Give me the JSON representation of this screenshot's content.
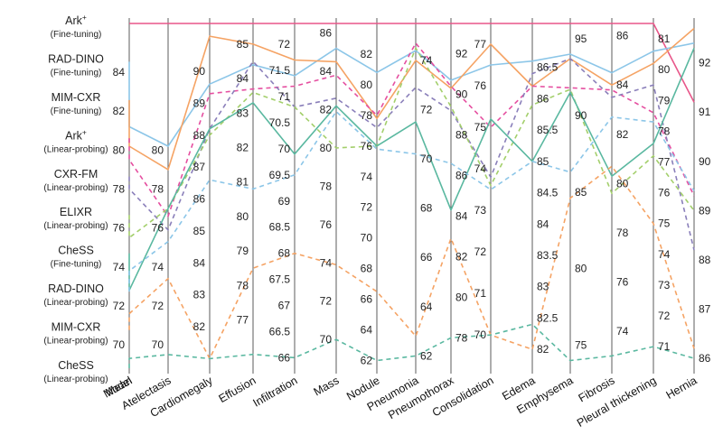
{
  "chart_data": {
    "type": "line",
    "subtype": "parallel-coordinates",
    "title": "",
    "xlabel": "",
    "ylabel": "",
    "grid": false,
    "legend": "left-axis labels",
    "model_axis_label": "Model",
    "model_ticks": [
      {
        "name": "Ark",
        "sup": "+",
        "sub": "(Fine-tuning)"
      },
      {
        "name": "RAD-DINO",
        "sup": "",
        "sub": "(Fine-tuning)"
      },
      {
        "name": "MIM-CXR",
        "sup": "",
        "sub": "(Fine-tuning)"
      },
      {
        "name": "Ark",
        "sup": "+",
        "sub": "(Linear-probing)"
      },
      {
        "name": "CXR-FM",
        "sup": "",
        "sub": "(Linear-probing)"
      },
      {
        "name": "ELIXR",
        "sup": "",
        "sub": "(Linear-probing)"
      },
      {
        "name": "CheSS",
        "sup": "",
        "sub": "(Fine-tuning)"
      },
      {
        "name": "RAD-DINO",
        "sup": "",
        "sub": "(Linear-probing)"
      },
      {
        "name": "MIM-CXR",
        "sup": "",
        "sub": "(Linear-probing)"
      },
      {
        "name": "CheSS",
        "sup": "",
        "sub": "(Linear-probing)"
      }
    ],
    "axes": [
      {
        "label": "Mean",
        "range": [
          68.8,
          86.5
        ],
        "ticks": [
          70,
          72,
          74,
          76,
          78,
          80,
          82,
          84
        ]
      },
      {
        "label": "Atelectasis",
        "range": [
          68.8,
          86.5
        ],
        "ticks": [
          70,
          72,
          74,
          76,
          78,
          80
        ]
      },
      {
        "label": "Cardiomegaly",
        "range": [
          80.7,
          91.5
        ],
        "ticks": [
          82,
          83,
          84,
          85,
          86,
          87,
          88,
          89,
          90
        ]
      },
      {
        "label": "Effusion",
        "range": [
          75.6,
          85.6
        ],
        "ticks": [
          77,
          78,
          79,
          80,
          81,
          82,
          83,
          84,
          85
        ]
      },
      {
        "label": "Infiltration",
        "range": [
          65.8,
          72.4
        ],
        "ticks": [
          66,
          66.5,
          67,
          67.5,
          68,
          68.5,
          69,
          69.5,
          70,
          70.5,
          71,
          71.5,
          72
        ]
      },
      {
        "label": "Mass",
        "range": [
          68.5,
          86.5
        ],
        "ticks": [
          70,
          72,
          74,
          76,
          78,
          80,
          82,
          84,
          86
        ]
      },
      {
        "label": "Nodule",
        "range": [
          61.5,
          84
        ],
        "ticks": [
          62,
          64,
          66,
          68,
          70,
          72,
          74,
          76,
          78,
          80,
          82
        ]
      },
      {
        "label": "Pneumonia",
        "range": [
          61.5,
          75.5
        ],
        "ticks": [
          62,
          64,
          66,
          68,
          70,
          72,
          74
        ]
      },
      {
        "label": "Pneumothorax",
        "range": [
          76.5,
          93.5
        ],
        "ticks": [
          78,
          80,
          82,
          84,
          86,
          88,
          90,
          92
        ]
      },
      {
        "label": "Consolidation",
        "range": [
          69.2,
          77.5
        ],
        "ticks": [
          70,
          71,
          72,
          73,
          74,
          75,
          76,
          77
        ]
      },
      {
        "label": "Edema",
        "range": [
          81.7,
          87.2
        ],
        "ticks": [
          82,
          82.5,
          83,
          83.5,
          84,
          84.5,
          85,
          85.5,
          86,
          86.5
        ]
      },
      {
        "label": "Emphysema",
        "range": [
          73.5,
          96
        ],
        "ticks": [
          75,
          80,
          85,
          90,
          95
        ]
      },
      {
        "label": "Fibrosis",
        "range": [
          72.5,
          86.5
        ],
        "ticks": [
          74,
          76,
          78,
          80,
          82,
          84,
          86
        ]
      },
      {
        "label": "Pleural thickening",
        "range": [
          70.3,
          81.5
        ],
        "ticks": [
          71,
          72,
          73,
          74,
          75,
          76,
          77,
          78,
          79,
          80,
          81
        ]
      },
      {
        "label": "Hernia",
        "range": [
          85.8,
          92.8
        ],
        "ticks": [
          86,
          87,
          88,
          89,
          90,
          91,
          92
        ]
      }
    ],
    "series": [
      {
        "color": "#e8578a",
        "dash": false,
        "values": [
          86.5,
          86.5,
          91.5,
          85.6,
          72.4,
          86.5,
          84,
          75.5,
          93.5,
          77.5,
          87.2,
          96,
          86.5,
          81.5,
          91.2
        ]
      },
      {
        "color": "#8cc6e8",
        "dash": false,
        "values": [
          81.2,
          80.2,
          89.6,
          84.4,
          71.4,
          85.2,
          80.8,
          74.4,
          90.7,
          76.5,
          86.6,
          94.0,
          84.5,
          80.6,
          92.4
        ]
      },
      {
        "color": "#f5a364",
        "dash": false,
        "values": [
          80.2,
          79.0,
          91.1,
          85.0,
          71.7,
          84.5,
          77.8,
          74.0,
          90.3,
          77.0,
          86.2,
          93.7,
          84.0,
          80.2,
          92.7
        ]
      },
      {
        "color": "#e54fa0",
        "dash": true,
        "values": [
          79.5,
          76.6,
          89.3,
          83.7,
          71.2,
          83.8,
          78.0,
          74.7,
          90.4,
          75.0,
          86.2,
          91.8,
          83.8,
          78.6,
          89.3
        ]
      },
      {
        "color": "#8a7fba",
        "dash": true,
        "values": [
          78.0,
          75.9,
          88.2,
          84.5,
          70.8,
          82.6,
          77.2,
          72.9,
          89.2,
          73.8,
          86.4,
          93.7,
          83.5,
          79.5,
          88.2
        ]
      },
      {
        "color": "#a3cf6b",
        "dash": true,
        "values": [
          75.5,
          77.0,
          88.0,
          83.6,
          70.8,
          80.0,
          76.0,
          74.5,
          89.4,
          73.6,
          85.9,
          91.7,
          79.6,
          77.2,
          89.0
        ]
      },
      {
        "color": "#5ab8a0",
        "dash": false,
        "values": [
          72.8,
          77.0,
          88.2,
          83.3,
          69.9,
          82.2,
          76.0,
          71.5,
          84.3,
          75.2,
          85.0,
          91.5,
          80.3,
          77.6,
          92.3
        ]
      },
      {
        "color": "#8cc6e8",
        "dash": true,
        "values": [
          73.8,
          75.3,
          86.6,
          80.8,
          69.5,
          81.9,
          75.8,
          70.2,
          86.6,
          73.5,
          85.0,
          86.3,
          82.7,
          78.3,
          89.4
        ]
      },
      {
        "color": "#f5a364",
        "dash": true,
        "values": [
          71.6,
          73.4,
          81.0,
          78.5,
          68.0,
          73.9,
          66.5,
          62.8,
          82.9,
          70.0,
          82.0,
          84.6,
          80.7,
          75.0,
          86.2
        ]
      },
      {
        "color": "#5ab8a0",
        "dash": true,
        "values": [
          69.3,
          69.5,
          81.0,
          76.0,
          66.0,
          70.0,
          62.0,
          62.0,
          78.0,
          70.0,
          82.4,
          74.0,
          73.0,
          71.0,
          86.0
        ]
      }
    ]
  }
}
